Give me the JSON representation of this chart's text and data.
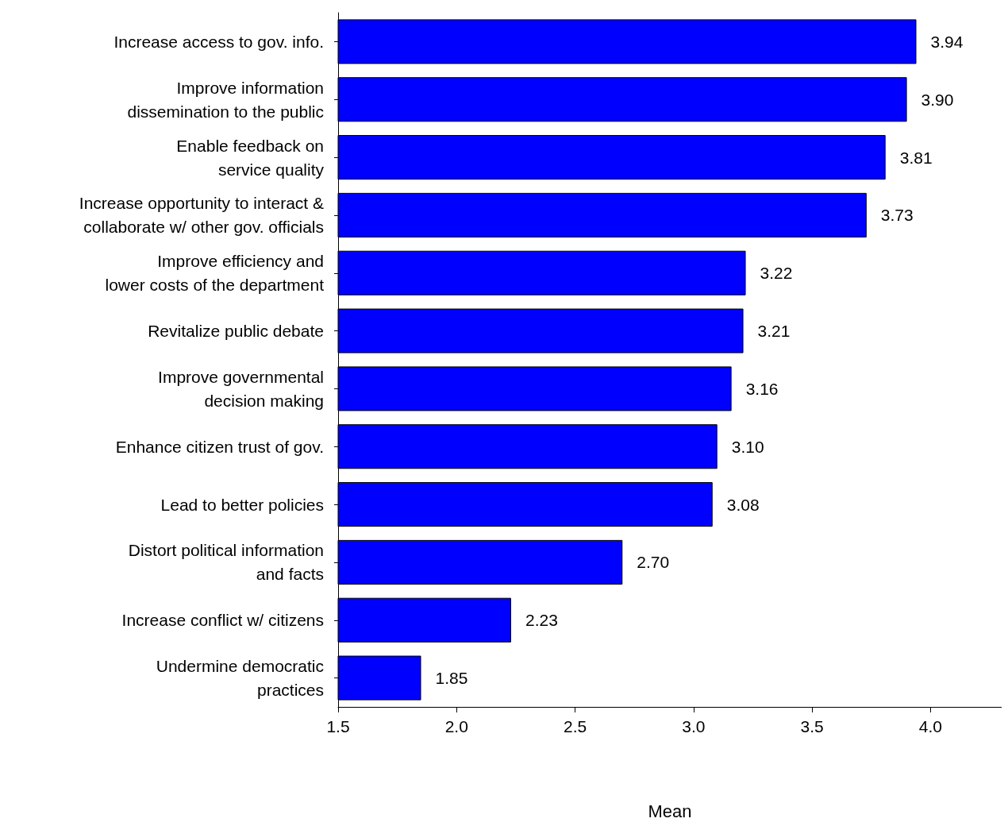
{
  "chart_data": {
    "type": "bar",
    "orientation": "horizontal",
    "xlabel": "Mean",
    "categories": [
      "Increase access to gov. info.",
      "Improve information\ndissemination to the public",
      "Enable feedback on\nservice quality",
      "Increase opportunity to interact &\ncollaborate w/ other gov. officials",
      "Improve efficiency and\nlower costs of the department",
      "Revitalize public debate",
      "Improve governmental\ndecision making",
      "Enhance citizen trust of gov.",
      "Lead to better policies",
      "Distort political information\nand facts",
      "Increase conflict w/ citizens",
      "Undermine democratic\npractices"
    ],
    "values": [
      3.94,
      3.9,
      3.81,
      3.73,
      3.22,
      3.21,
      3.16,
      3.1,
      3.08,
      2.7,
      2.23,
      1.85
    ],
    "value_labels": [
      "3.94",
      "3.90",
      "3.81",
      "3.73",
      "3.22",
      "3.21",
      "3.16",
      "3.10",
      "3.08",
      "2.70",
      "2.23",
      "1.85"
    ],
    "color": "#0000ff",
    "xlim": [
      1.5,
      4.3
    ],
    "xticks": [
      1.5,
      {
        "value": 2,
        "label": "2.0"
      },
      2.5,
      {
        "value": 3,
        "label": "3.0"
      },
      3.5,
      {
        "value": 4,
        "label": "4.0"
      }
    ],
    "grid": false
  }
}
